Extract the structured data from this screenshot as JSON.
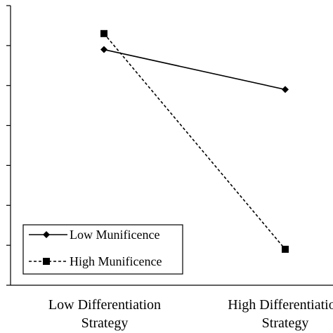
{
  "chart_data": {
    "type": "line",
    "categories": [
      "Low Differentiation Strategy",
      "High Differentiation Strategy"
    ],
    "category_labels": [
      [
        "Low Differentiation",
        "Strategy"
      ],
      [
        "High Differentiation",
        "Strategy"
      ]
    ],
    "series": [
      {
        "name": "Low Munificence",
        "values": [
          5.9,
          4.9
        ],
        "line_style": "solid",
        "marker": "diamond",
        "color": "#000000"
      },
      {
        "name": "High Munificence",
        "values": [
          6.3,
          0.9
        ],
        "line_style": "dashed",
        "marker": "square",
        "color": "#000000"
      }
    ],
    "ylim": [
      0,
      7
    ],
    "yticks": [
      0,
      1,
      2,
      3,
      4,
      5,
      6,
      7
    ],
    "ytick_labels_shown": false,
    "xlabel": "",
    "ylabel": "",
    "title": "",
    "grid": false,
    "legend_position": "bottom-left"
  }
}
